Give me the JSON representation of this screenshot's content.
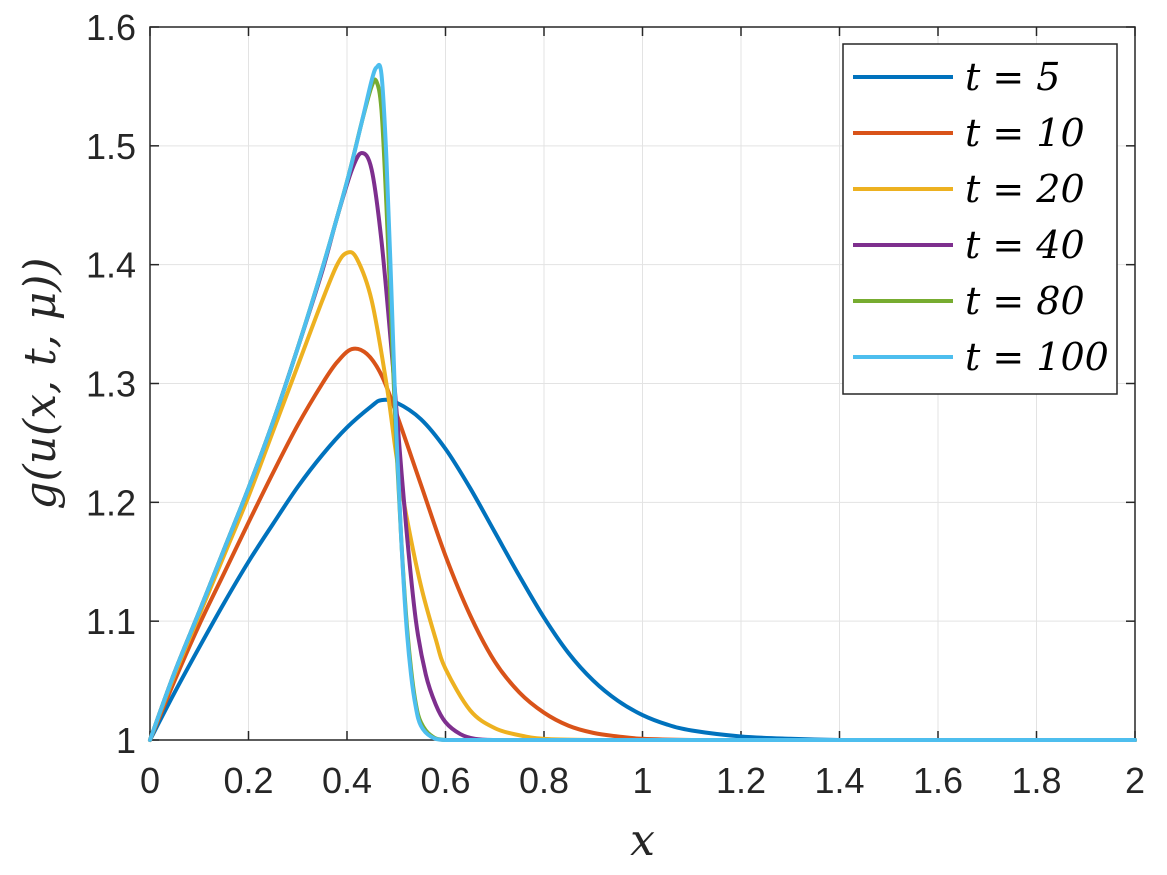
{
  "chart_data": {
    "type": "line",
    "title": "",
    "xlabel": "x",
    "ylabel": "g(u(x, t, μ))",
    "xlim": [
      0,
      2
    ],
    "ylim": [
      1,
      1.6
    ],
    "xticks": [
      0,
      0.2,
      0.4,
      0.6,
      0.8,
      1,
      1.2,
      1.4,
      1.6,
      1.8,
      2
    ],
    "xtick_labels": [
      "0",
      "0.2",
      "0.4",
      "0.6",
      "0.8",
      "1",
      "1.2",
      "1.4",
      "1.6",
      "1.8",
      "2"
    ],
    "yticks": [
      1,
      1.1,
      1.2,
      1.3,
      1.4,
      1.5,
      1.6
    ],
    "ytick_labels": [
      "1",
      "1.1",
      "1.2",
      "1.3",
      "1.4",
      "1.5",
      "1.6"
    ],
    "grid": true,
    "legend_position": "top-right",
    "series": [
      {
        "name": "t = 5",
        "color": "#0072BD",
        "x": [
          0,
          0.05,
          0.1,
          0.15,
          0.2,
          0.25,
          0.3,
          0.35,
          0.4,
          0.45,
          0.47,
          0.5,
          0.55,
          0.6,
          0.65,
          0.7,
          0.75,
          0.8,
          0.85,
          0.9,
          0.95,
          1.0,
          1.05,
          1.1,
          1.2,
          1.3,
          1.4,
          1.5,
          1.6,
          1.8,
          2.0
        ],
        "y": [
          1.0,
          1.04,
          1.078,
          1.115,
          1.15,
          1.182,
          1.213,
          1.24,
          1.263,
          1.281,
          1.286,
          1.284,
          1.27,
          1.245,
          1.212,
          1.175,
          1.138,
          1.103,
          1.073,
          1.05,
          1.033,
          1.021,
          1.013,
          1.008,
          1.003,
          1.001,
          1.0,
          1.0,
          1.0,
          1.0,
          1.0
        ]
      },
      {
        "name": "t = 10",
        "color": "#D95319",
        "x": [
          0,
          0.05,
          0.1,
          0.15,
          0.2,
          0.25,
          0.3,
          0.35,
          0.38,
          0.41,
          0.44,
          0.47,
          0.5,
          0.55,
          0.6,
          0.65,
          0.7,
          0.75,
          0.8,
          0.85,
          0.9,
          0.95,
          1.0,
          1.1,
          1.2,
          1.4,
          1.6,
          2.0
        ],
        "y": [
          1.0,
          1.05,
          1.097,
          1.14,
          1.183,
          1.225,
          1.265,
          1.3,
          1.318,
          1.329,
          1.325,
          1.307,
          1.275,
          1.215,
          1.155,
          1.105,
          1.066,
          1.04,
          1.023,
          1.012,
          1.006,
          1.003,
          1.001,
          1.0,
          1.0,
          1.0,
          1.0,
          1.0
        ]
      },
      {
        "name": "t = 20",
        "color": "#EDB120",
        "x": [
          0,
          0.05,
          0.1,
          0.15,
          0.2,
          0.25,
          0.3,
          0.35,
          0.38,
          0.4,
          0.42,
          0.45,
          0.48,
          0.5,
          0.52,
          0.55,
          0.58,
          0.6,
          0.65,
          0.7,
          0.75,
          0.8,
          0.9,
          1.0,
          1.5,
          2.0
        ],
        "y": [
          1.0,
          1.055,
          1.105,
          1.155,
          1.205,
          1.26,
          1.315,
          1.37,
          1.4,
          1.41,
          1.405,
          1.37,
          1.3,
          1.24,
          1.19,
          1.13,
          1.085,
          1.06,
          1.025,
          1.01,
          1.004,
          1.001,
          1.0,
          1.0,
          1.0,
          1.0
        ]
      },
      {
        "name": "t = 40",
        "color": "#7E2F8E",
        "x": [
          0,
          0.05,
          0.1,
          0.15,
          0.2,
          0.25,
          0.3,
          0.35,
          0.38,
          0.41,
          0.43,
          0.45,
          0.47,
          0.49,
          0.5,
          0.52,
          0.54,
          0.56,
          0.58,
          0.6,
          0.63,
          0.66,
          0.7,
          0.8,
          1.0,
          1.5,
          2.0
        ],
        "y": [
          1.0,
          1.057,
          1.108,
          1.16,
          1.212,
          1.268,
          1.33,
          1.395,
          1.44,
          1.48,
          1.494,
          1.48,
          1.42,
          1.33,
          1.28,
          1.18,
          1.1,
          1.055,
          1.03,
          1.015,
          1.005,
          1.001,
          1.0,
          1.0,
          1.0,
          1.0,
          1.0
        ]
      },
      {
        "name": "t = 80",
        "color": "#77AC30",
        "x": [
          0,
          0.05,
          0.1,
          0.15,
          0.2,
          0.25,
          0.3,
          0.35,
          0.4,
          0.43,
          0.45,
          0.46,
          0.47,
          0.48,
          0.49,
          0.5,
          0.51,
          0.52,
          0.53,
          0.54,
          0.55,
          0.57,
          0.6,
          0.7,
          1.0,
          1.5,
          2.0
        ],
        "y": [
          1.0,
          1.057,
          1.108,
          1.16,
          1.212,
          1.268,
          1.33,
          1.397,
          1.47,
          1.52,
          1.55,
          1.554,
          1.53,
          1.45,
          1.35,
          1.25,
          1.17,
          1.105,
          1.06,
          1.03,
          1.015,
          1.004,
          1.0,
          1.0,
          1.0,
          1.0,
          1.0
        ]
      },
      {
        "name": "t = 100",
        "color": "#4DBEEE",
        "x": [
          0,
          0.05,
          0.1,
          0.15,
          0.2,
          0.25,
          0.3,
          0.35,
          0.4,
          0.43,
          0.45,
          0.46,
          0.47,
          0.48,
          0.49,
          0.5,
          0.51,
          0.52,
          0.53,
          0.54,
          0.55,
          0.57,
          0.6,
          0.7,
          1.0,
          1.5,
          2.0
        ],
        "y": [
          1.0,
          1.057,
          1.108,
          1.16,
          1.212,
          1.268,
          1.33,
          1.397,
          1.47,
          1.52,
          1.555,
          1.566,
          1.56,
          1.49,
          1.38,
          1.26,
          1.17,
          1.1,
          1.055,
          1.027,
          1.012,
          1.003,
          1.0,
          1.0,
          1.0,
          1.0,
          1.0
        ]
      }
    ]
  }
}
